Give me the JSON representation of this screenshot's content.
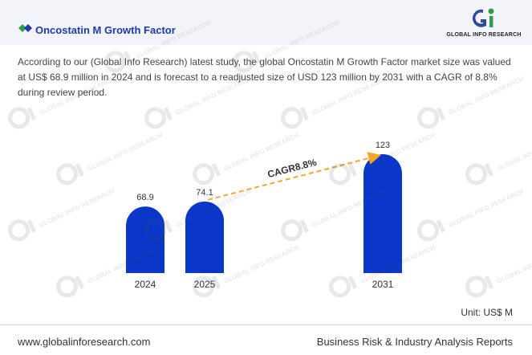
{
  "header": {
    "title": "Oncostatin M Growth Factor",
    "logo_text": "GLOBAL INFO RESEARCH",
    "icon": "diamond-icon"
  },
  "description": "According to our (Global Info Research) latest study, the global Oncostatin M Growth Factor market size was valued at US$ 68.9 million in 2024 and is forecast to a readjusted size of USD 123 million by 2031 with a CAGR of 8.8% during review period.",
  "unit": "Unit: US$ M",
  "footer": {
    "website": "www.globalinforesearch.com",
    "tagline": "Business Risk & Industry Analysis Reports"
  },
  "colors": {
    "bar": "#0a36c9",
    "accent_title": "#1e3aa8",
    "cagr_arrow": "#f5a623",
    "header_bg": "#f3f4f9"
  },
  "chart_data": {
    "type": "bar",
    "categories": [
      "2024",
      "2025",
      "2031"
    ],
    "values": [
      68.9,
      74.1,
      123
    ],
    "value_labels": [
      "68.9",
      "74.1",
      "123"
    ],
    "annotation": "CAGR8.8%",
    "ylim": [
      0,
      123
    ],
    "grid": false,
    "legend": "none"
  }
}
